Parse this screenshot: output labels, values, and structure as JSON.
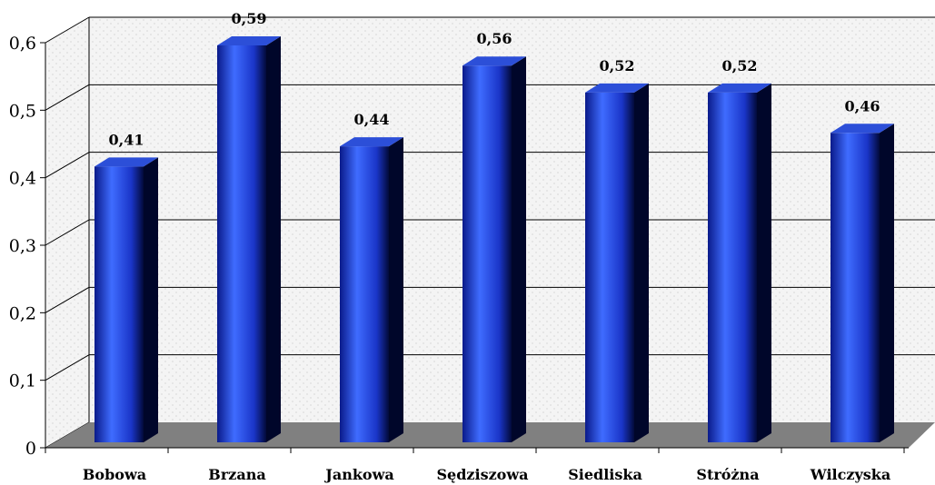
{
  "chart_data": {
    "type": "bar",
    "categories": [
      "Bobowa",
      "Brzana",
      "Jankowa",
      "Sędziszowa",
      "Siedliska",
      "Stróżna",
      "Wilczyska"
    ],
    "values": [
      0.41,
      0.59,
      0.44,
      0.56,
      0.52,
      0.52,
      0.46
    ],
    "data_labels": [
      "0,41",
      "0,59",
      "0,44",
      "0,56",
      "0,52",
      "0,52",
      "0,46"
    ],
    "y_ticks": [
      0,
      0.1,
      0.2,
      0.3,
      0.4,
      0.5,
      0.6
    ],
    "y_tick_labels": [
      "0",
      "0,1",
      "0,2",
      "0,3",
      "0,4",
      "0,5",
      "0,6"
    ],
    "ylim": [
      0,
      0.6
    ],
    "title": "",
    "xlabel": "",
    "ylabel": "",
    "grid": true,
    "style": "3d-cylinder",
    "colors": {
      "bar_light": "#3f6cff",
      "bar_mid": "#1f3fe0",
      "bar_dark": "#020a3a",
      "bar_top": "#2c4fd8",
      "bar_side": "#00062a",
      "floor": "#808080",
      "wall": "#ececec",
      "grid": "#000000"
    }
  }
}
